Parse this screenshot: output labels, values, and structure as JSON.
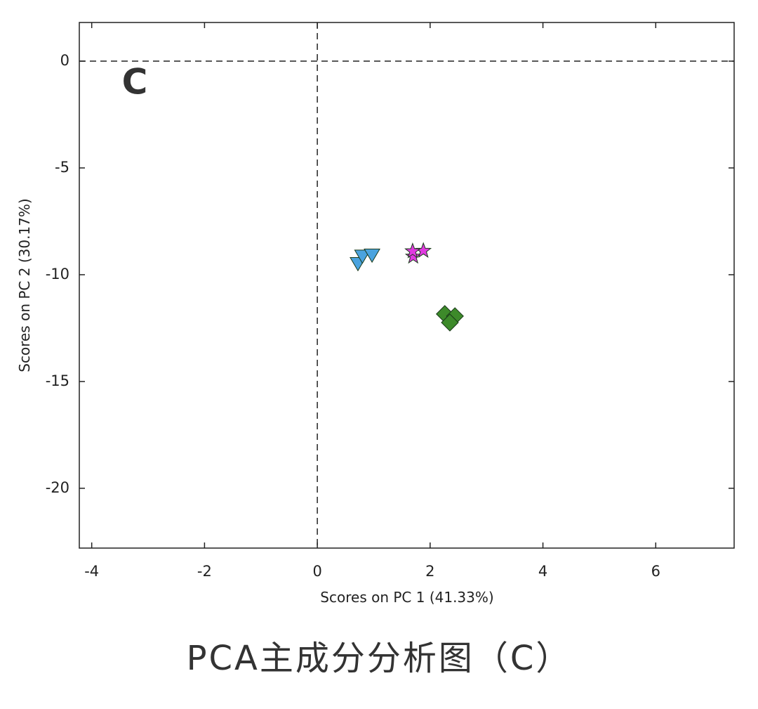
{
  "chart_data": {
    "type": "scatter",
    "annotation": "C",
    "caption": "PCA主成分分析图（C）",
    "x_label": "Scores on PC 1 (41.33%)",
    "y_label": "Scores on PC 2 (30.17%)",
    "xlim": [
      -4.22,
      7.39
    ],
    "ylim": [
      -22.8,
      1.81
    ],
    "xticks": [
      -4,
      -2,
      0,
      2,
      4,
      6
    ],
    "yticks": [
      0,
      -5,
      -10,
      -15,
      -20
    ],
    "zero_lines": true,
    "series": [
      {
        "color": "#4aa3df",
        "marker": "triangle-down",
        "x": [
          0.72,
          0.8,
          0.97
        ],
        "values": [
          -9.45,
          -9.1,
          -9.05
        ]
      },
      {
        "color": "#e03ae0",
        "marker": "star",
        "x": [
          1.7,
          1.88,
          1.69
        ],
        "values": [
          -9.15,
          -8.88,
          -8.9
        ]
      },
      {
        "color": "#3d8a2a",
        "marker": "diamond",
        "x": [
          2.26,
          2.44,
          2.35
        ],
        "values": [
          -11.84,
          -11.94,
          -12.24
        ]
      }
    ]
  }
}
